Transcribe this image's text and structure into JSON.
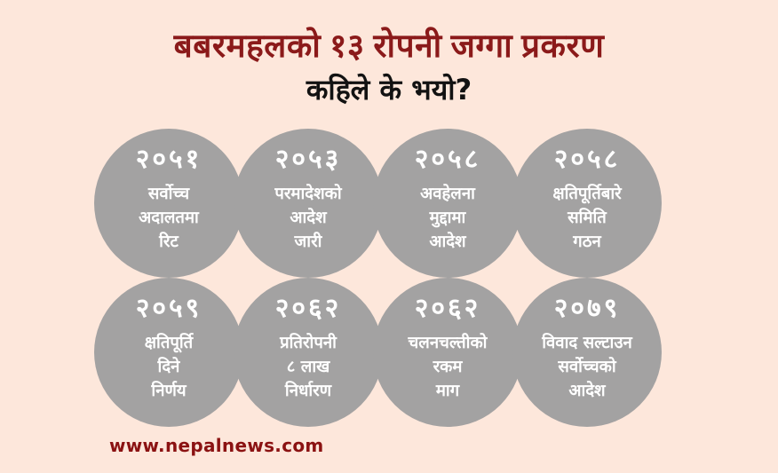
{
  "header": {
    "title": "बबरमहलको १३ रोपनी जग्गा प्रकरण",
    "subtitle": "कहिले के भयो?"
  },
  "timeline": {
    "circles": [
      {
        "year": "२०५१",
        "description": "सर्वोच्च\nअदालतमा\nरिट"
      },
      {
        "year": "२०५३",
        "description": "परमादेशको\nआदेश\nजारी"
      },
      {
        "year": "२०५८",
        "description": "अवहेलना\nमुद्दामा\nआदेश"
      },
      {
        "year": "२०५८",
        "description": "क्षतिपूर्तिबारे\nसमिति\nगठन"
      },
      {
        "year": "२०५९",
        "description": "क्षतिपूर्ति\nदिने\nनिर्णय"
      },
      {
        "year": "२०६२",
        "description": "प्रतिरोपनी\n८ लाख\nनिर्धारण"
      },
      {
        "year": "२०६२",
        "description": "चलनचल्तीको\nरकम\nमाग"
      },
      {
        "year": "२०७९",
        "description": "विवाद सल्टाउन\nसर्वोच्चको\nआदेश"
      }
    ]
  },
  "footer": {
    "url": "www.nepalnews.com"
  },
  "colors": {
    "background": "#FDE7DB",
    "circle_fill": "#A3A2A2",
    "circle_text": "#FFFFFF",
    "title_text": "#8B1A1A",
    "subtitle_text": "#121212",
    "footer_text": "#8B1212"
  }
}
